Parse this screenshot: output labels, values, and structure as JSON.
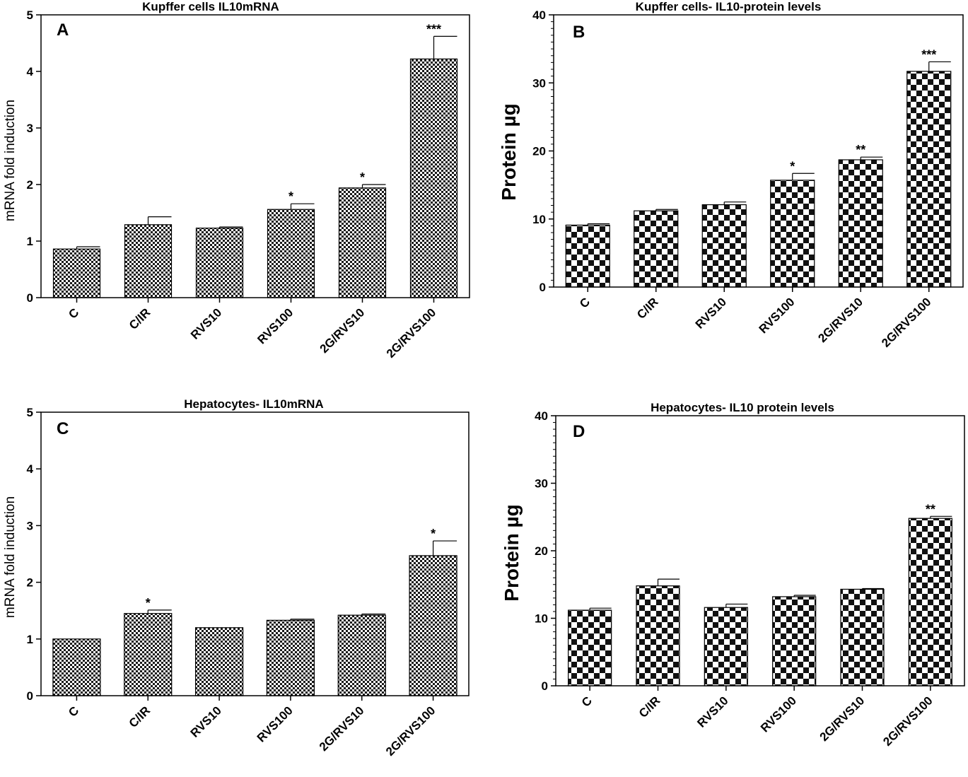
{
  "chart_data": [
    {
      "panel": "A",
      "type": "bar",
      "title": "Kupffer cells IL10mRNA",
      "xlabel": "",
      "ylabel": "mRNA fold induction",
      "ylim": [
        0,
        5
      ],
      "yticks": [
        0,
        1,
        2,
        3,
        4,
        5
      ],
      "categories": [
        "C",
        "C/IR",
        "RVS10",
        "RVS100",
        "2G/RVS10",
        "2G/RVS100"
      ],
      "values": [
        0.86,
        1.29,
        1.23,
        1.56,
        1.94,
        4.22
      ],
      "errors": [
        0.04,
        0.14,
        0.02,
        0.1,
        0.06,
        0.4
      ],
      "significance": [
        "",
        "",
        "",
        "*",
        "*",
        "***"
      ],
      "pattern": "fine"
    },
    {
      "panel": "B",
      "type": "bar",
      "title": "Kupffer cells- IL10-protein levels",
      "xlabel": "",
      "ylabel": "Protein µg",
      "ylim": [
        0,
        40
      ],
      "yticks": [
        0,
        10,
        20,
        30,
        40
      ],
      "categories": [
        "C",
        "C/IR",
        "RVS10",
        "RVS100",
        "2G/RVS10",
        "2G/RVS100"
      ],
      "values": [
        9.1,
        11.2,
        12.1,
        15.7,
        18.7,
        31.7
      ],
      "errors": [
        0.2,
        0.2,
        0.4,
        1.0,
        0.4,
        1.4
      ],
      "significance": [
        "",
        "",
        "",
        "*",
        "**",
        "***"
      ],
      "pattern": "coarse"
    },
    {
      "panel": "C",
      "type": "bar",
      "title": "Hepatocytes- IL10mRNA",
      "xlabel": "",
      "ylabel": "mRNA fold induction",
      "ylim": [
        0,
        5
      ],
      "yticks": [
        0,
        1,
        2,
        3,
        4,
        5
      ],
      "categories": [
        "C",
        "C/IR",
        "RVS10",
        "RVS100",
        "2G/RVS10",
        "2G/RVS100"
      ],
      "values": [
        1.0,
        1.45,
        1.2,
        1.33,
        1.42,
        2.47
      ],
      "errors": [
        0.0,
        0.06,
        0.0,
        0.02,
        0.02,
        0.26
      ],
      "significance": [
        "",
        "*",
        "",
        "",
        "",
        "*"
      ],
      "pattern": "fine"
    },
    {
      "panel": "D",
      "type": "bar",
      "title": "Hepatocytes- IL10 protein levels",
      "xlabel": "",
      "ylabel": "Protein µg",
      "ylim": [
        0,
        40
      ],
      "yticks": [
        0,
        10,
        20,
        30,
        40
      ],
      "categories": [
        "C",
        "C/IR",
        "RVS10",
        "RVS100",
        "2G/RVS10",
        "2G/RVS100"
      ],
      "values": [
        11.2,
        14.8,
        11.6,
        13.2,
        14.3,
        24.8
      ],
      "errors": [
        0.3,
        1.0,
        0.5,
        0.2,
        0.1,
        0.3
      ],
      "significance": [
        "",
        "",
        "",
        "",
        "",
        "**"
      ],
      "pattern": "coarse"
    }
  ]
}
